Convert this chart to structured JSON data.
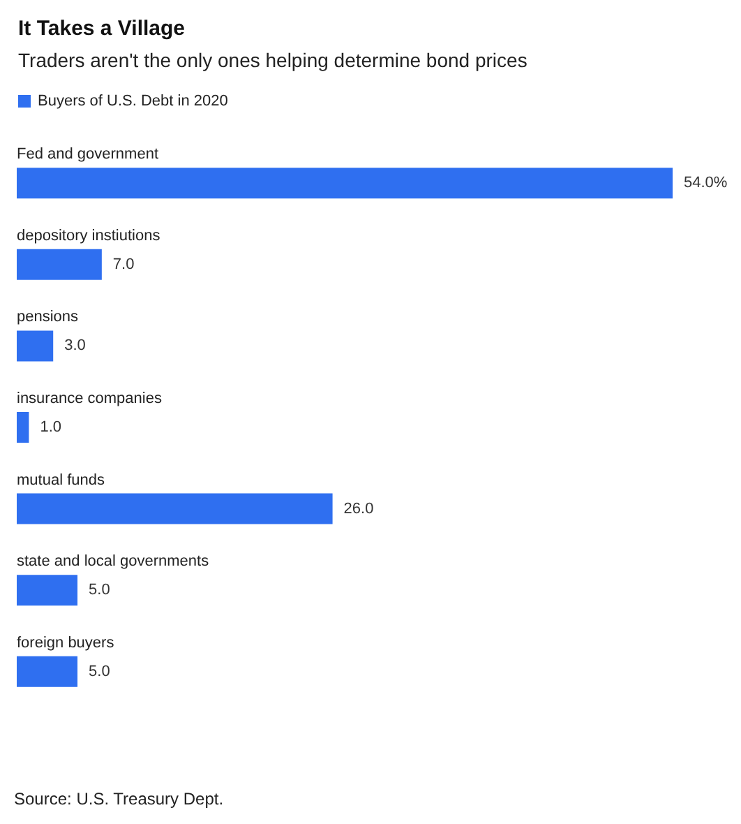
{
  "chart_data": {
    "type": "bar",
    "orientation": "horizontal",
    "title": "It Takes a Village",
    "subtitle": "Traders aren't the only ones helping determine bond prices",
    "categories": [
      "Fed and government",
      "depository instiutions",
      "pensions",
      "insurance companies",
      "mutual funds",
      "state and local governments",
      "foreign buyers"
    ],
    "series": [
      {
        "name": "Buyers of U.S. Debt in 2020",
        "color": "#2f6ff0",
        "values": [
          54.0,
          7.0,
          3.0,
          1.0,
          26.0,
          5.0,
          5.0
        ],
        "value_labels": [
          "54.0%",
          "7.0",
          "3.0",
          "1.0",
          "26.0",
          "5.0",
          "5.0"
        ]
      }
    ],
    "legend": "top left",
    "annotations": [
      "Source: U.S. Treasury Dept."
    ]
  }
}
